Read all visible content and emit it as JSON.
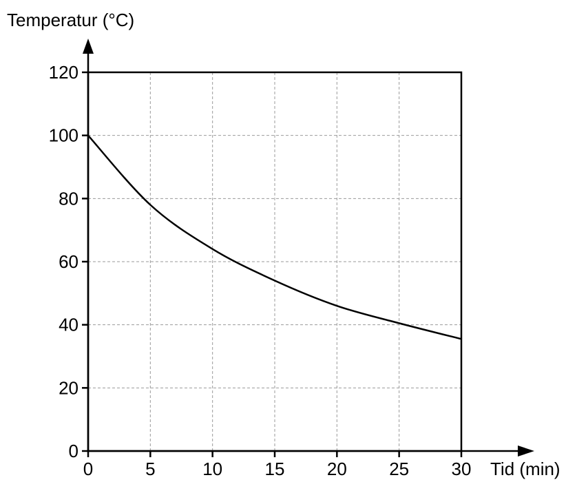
{
  "chart_data": {
    "type": "line",
    "title": "",
    "xlabel": "Tid (min)",
    "ylabel": "Temperatur (°C)",
    "xlim": [
      0,
      30
    ],
    "ylim": [
      0,
      120
    ],
    "x_ticks": [
      0,
      5,
      10,
      15,
      20,
      25,
      30
    ],
    "y_ticks": [
      0,
      20,
      40,
      60,
      80,
      100,
      120
    ],
    "grid": true,
    "series": [
      {
        "x": [
          0,
          5,
          10,
          15,
          20,
          25,
          30
        ],
        "values": [
          100,
          78,
          64,
          54,
          46,
          40.5,
          35.5
        ]
      }
    ]
  }
}
